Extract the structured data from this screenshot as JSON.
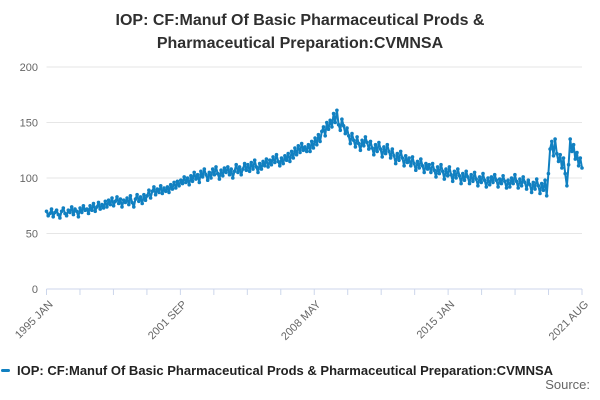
{
  "title": "IOP: CF:Manuf Of Basic Pharmaceutical Prods & Pharmaceutical Preparation:CVMNSA",
  "legend": {
    "label": "IOP: CF:Manuf Of Basic Pharmaceutical Prods & Pharmaceutical Preparation:CVMNSA"
  },
  "source": {
    "label": "Source:"
  },
  "colors": {
    "series": "#1180c1",
    "grid": "#e6e6e6",
    "axis": "#ccd6eb",
    "label": "#666666"
  },
  "chart_data": {
    "type": "line",
    "title": "IOP: CF:Manuf Of Basic Pharmaceutical Prods & Pharmaceutical Preparation:CVMNSA",
    "xlabel": "",
    "ylabel": "",
    "frequency": "monthly",
    "x_start": "1995 JAN",
    "x_end": "2021 AUG",
    "x_tick_labels": [
      "1995 JAN",
      "2001 SEP",
      "2008 MAY",
      "2015 JAN",
      "2021 AUG"
    ],
    "x_minor_tick_count": 17,
    "y_ticks": [
      0,
      50,
      100,
      150,
      200
    ],
    "ylim": [
      0,
      200
    ],
    "grid": "horizontal",
    "legend_position": "bottom-left",
    "marker_style": "point-on-line",
    "series": [
      {
        "name": "IOP: CF:Manuf Of Basic Pharmaceutical Prods & Pharmaceutical Preparation:CVMNSA",
        "color": "#1180c1",
        "values": [
          70,
          66,
          68,
          72,
          65,
          69,
          71,
          67,
          64,
          70,
          73,
          68,
          66,
          71,
          69,
          74,
          67,
          72,
          70,
          65,
          73,
          69,
          75,
          71,
          72,
          68,
          75,
          71,
          77,
          70,
          74,
          78,
          72,
          76,
          73,
          79,
          74,
          80,
          76,
          82,
          75,
          79,
          83,
          77,
          81,
          74,
          80,
          78,
          82,
          76,
          84,
          78,
          74,
          81,
          85,
          79,
          83,
          77,
          85,
          80,
          84,
          89,
          82,
          88,
          92,
          85,
          90,
          87,
          93,
          86,
          91,
          88,
          92,
          87,
          94,
          90,
          96,
          91,
          97,
          93,
          98,
          95,
          101,
          96,
          100,
          94,
          102,
          97,
          105,
          99,
          103,
          96,
          106,
          101,
          108,
          103,
          98,
          105,
          100,
          108,
          103,
          110,
          104,
          99,
          107,
          102,
          109,
          105,
          110,
          103,
          108,
          100,
          106,
          112,
          105,
          110,
          103,
          108,
          113,
          107,
          112,
          106,
          114,
          108,
          116,
          110,
          105,
          113,
          108,
          115,
          111,
          117,
          110,
          116,
          112,
          119,
          114,
          121,
          115,
          111,
          118,
          113,
          120,
          116,
          122,
          115,
          124,
          118,
          127,
          121,
          129,
          123,
          131,
          125,
          128,
          124,
          130,
          124,
          133,
          127,
          136,
          130,
          139,
          133,
          142,
          146,
          138,
          150,
          144,
          152,
          146,
          158,
          150,
          161,
          148,
          143,
          153,
          147,
          140,
          145,
          138,
          131,
          140,
          134,
          128,
          137,
          131,
          125,
          134,
          129,
          137,
          132,
          126,
          133,
          127,
          121,
          130,
          124,
          132,
          126,
          119,
          128,
          122,
          130,
          124,
          118,
          126,
          120,
          113,
          122,
          116,
          124,
          118,
          111,
          120,
          114,
          118,
          111,
          119,
          113,
          107,
          115,
          109,
          117,
          111,
          105,
          113,
          108,
          112,
          105,
          113,
          107,
          101,
          110,
          104,
          112,
          106,
          99,
          108,
          102,
          110,
          103,
          97,
          106,
          100,
          108,
          102,
          95,
          104,
          98,
          106,
          101,
          95,
          103,
          97,
          105,
          99,
          93,
          101,
          96,
          104,
          98,
          92,
          100,
          94,
          101,
          96,
          103,
          98,
          92,
          99,
          95,
          102,
          97,
          91,
          98,
          92,
          100,
          95,
          103,
          97,
          91,
          99,
          93,
          101,
          96,
          90,
          98,
          94,
          87,
          96,
          90,
          99,
          93,
          86,
          95,
          89,
          98,
          84,
          104,
          126,
          133,
          120,
          135,
          122,
          115,
          121,
          109,
          118,
          104,
          93,
          112,
          135,
          124,
          130,
          117,
          123,
          111,
          118,
          109
        ]
      }
    ]
  }
}
